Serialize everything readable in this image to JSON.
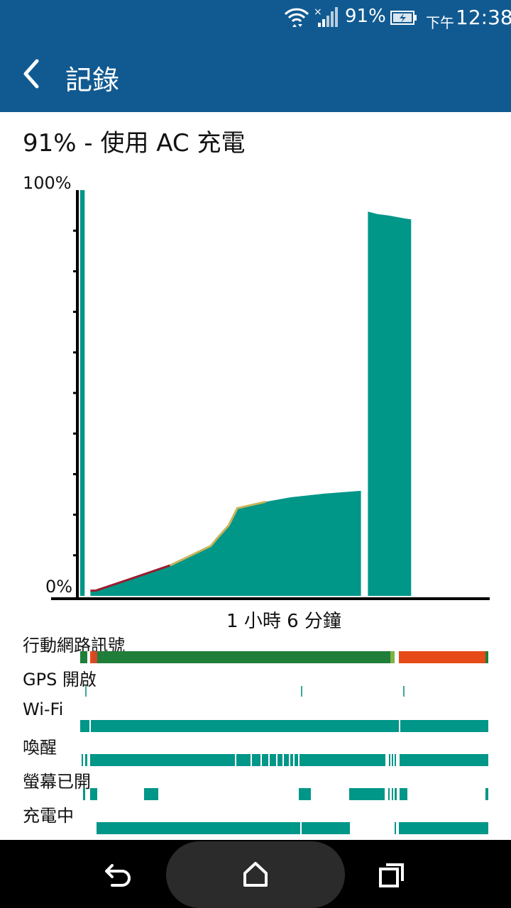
{
  "status_bar": {
    "battery_percent": "91%",
    "time_prefix": "下午",
    "time": "12:38",
    "icons": [
      "wifi-icon",
      "signal-icon",
      "battery-charging-icon"
    ]
  },
  "app_bar": {
    "title": "記錄",
    "back_icon": "chevron-left-icon"
  },
  "summary": {
    "headline": "91% - 使用 AC 充電"
  },
  "chart_data": {
    "type": "area",
    "ylabel_top": "100%",
    "ylabel_bottom": "0%",
    "ylim": [
      0,
      100
    ],
    "duration_label": "1 小時 6 分鐘",
    "description": "",
    "series": [
      {
        "segments": [
          {
            "t": [
              0.0,
              0.011
            ],
            "level": [
              100,
              100
            ]
          },
          {
            "t": [
              0.025,
              0.038,
              0.115,
              0.22,
              0.32,
              0.338,
              0.364,
              0.385,
              0.455,
              0.516,
              0.598,
              0.688
            ],
            "level": [
              1.3,
              1.3,
              3.9,
              7.5,
              12.3,
              14.5,
              17.4,
              21.6,
              23.2,
              24.3,
              25.2,
              25.9
            ]
          },
          {
            "t": [
              0.705,
              0.728,
              0.758,
              0.791,
              0.811
            ],
            "level": [
              94.7,
              94.1,
              93.7,
              93.1,
              92.8
            ]
          }
        ]
      }
    ],
    "colors": {
      "fill": "#009688",
      "trend_low": "#9b1c2e",
      "trend_mid": "#c6b55a"
    }
  },
  "timeline": {
    "tracks": [
      {
        "label": "行動網路訊號"
      },
      {
        "label": "GPS 開啟"
      },
      {
        "label": "Wi-Fi"
      },
      {
        "label": "喚醒"
      },
      {
        "label": "螢幕已開"
      },
      {
        "label": "充電中"
      }
    ]
  },
  "nav_bar": {
    "icons": [
      "back-arrow-icon",
      "home-icon",
      "recent-apps-icon"
    ]
  }
}
